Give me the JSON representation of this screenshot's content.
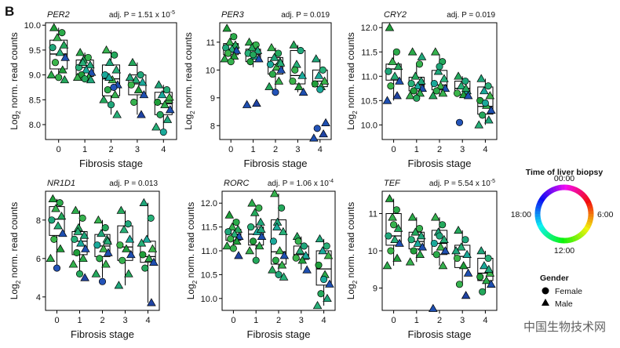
{
  "panel_letter": "B",
  "legend": {
    "time_title": "Time of liver biopsy",
    "time_labels": [
      "00:00",
      "6:00",
      "12:00",
      "18:00"
    ],
    "gender_title": "Gender",
    "gender_items": [
      "Female",
      "Male"
    ]
  },
  "watermark": "中国生物技术网",
  "chart_data": [
    {
      "type": "box",
      "gene": "PER2",
      "p_prefix": "adj. P = 1.51 x 10",
      "p_exp": "-5",
      "ylabel_pre": "Log",
      "ylabel_sub": "2",
      "ylabel_post": " norm. read counts",
      "xlabel": "Fibrosis stage",
      "categories": [
        "0",
        "1",
        "2",
        "3",
        "4"
      ],
      "ylim": [
        7.7,
        10.05
      ],
      "yticks": [
        "8.0",
        "8.5",
        "9.0",
        "9.5",
        "10.0"
      ],
      "boxes": [
        {
          "q1": 9.12,
          "median": 9.42,
          "q3": 9.7,
          "wmin": 8.9,
          "wmax": 9.95
        },
        {
          "q1": 8.97,
          "median": 9.15,
          "q3": 9.3,
          "wmin": 8.9,
          "wmax": 9.45
        },
        {
          "q1": 8.58,
          "median": 8.92,
          "q3": 9.2,
          "wmin": 8.2,
          "wmax": 9.5
        },
        {
          "q1": 8.6,
          "median": 8.82,
          "q3": 9.0,
          "wmin": 8.2,
          "wmax": 9.25
        },
        {
          "q1": 8.2,
          "median": 8.42,
          "q3": 8.65,
          "wmin": 7.85,
          "wmax": 8.8
        }
      ],
      "points": [
        [
          9.95,
          9.85,
          9.75,
          9.6,
          9.55,
          9.45,
          9.35,
          9.25,
          9.1,
          9.0,
          8.95,
          8.9
        ],
        [
          9.45,
          9.35,
          9.3,
          9.2,
          9.15,
          9.1,
          9.05,
          9.0,
          8.95,
          8.95,
          8.92,
          8.9,
          9.25
        ],
        [
          9.5,
          9.4,
          9.25,
          9.1,
          9.0,
          8.9,
          8.8,
          8.7,
          8.6,
          8.5,
          8.4,
          8.2,
          8.95,
          8.75
        ],
        [
          9.25,
          9.0,
          8.9,
          8.85,
          8.8,
          8.7,
          8.6,
          8.45,
          8.2,
          8.95
        ],
        [
          8.8,
          8.7,
          8.6,
          8.5,
          8.45,
          8.4,
          8.3,
          8.2,
          8.1,
          7.95,
          7.85,
          8.55
        ]
      ]
    },
    {
      "type": "box",
      "gene": "PER3",
      "p_prefix": "adj. P = 0.019",
      "p_exp": "",
      "ylabel_pre": "Log",
      "ylabel_sub": "2",
      "ylabel_post": " norm. read counts",
      "xlabel": "Fibrosis stage",
      "categories": [
        "0",
        "1",
        "2",
        "3",
        "4"
      ],
      "ylim": [
        7.5,
        11.7
      ],
      "yticks": [
        "8",
        "9",
        "10",
        "11"
      ],
      "boxes": [
        {
          "q1": 10.55,
          "median": 10.75,
          "q3": 10.95,
          "wmin": 10.3,
          "wmax": 11.3
        },
        {
          "q1": 10.3,
          "median": 10.55,
          "q3": 10.75,
          "wmin": 10.1,
          "wmax": 11.0
        },
        {
          "q1": 9.85,
          "median": 10.2,
          "q3": 10.45,
          "wmin": 9.2,
          "wmax": 10.8
        },
        {
          "q1": 9.5,
          "median": 9.8,
          "q3": 10.7,
          "wmin": 9.2,
          "wmax": 10.9
        },
        {
          "q1": 9.4,
          "median": 9.6,
          "q3": 10.0,
          "wmin": 9.2,
          "wmax": 10.4
        }
      ],
      "points": [
        [
          11.5,
          11.2,
          11.0,
          10.9,
          10.8,
          10.75,
          10.7,
          10.6,
          10.5,
          10.4,
          10.3
        ],
        [
          11.0,
          10.9,
          10.8,
          10.7,
          10.6,
          10.5,
          10.4,
          10.3,
          8.8,
          8.75,
          10.55
        ],
        [
          10.8,
          10.6,
          10.45,
          10.3,
          10.2,
          10.1,
          10.0,
          9.85,
          9.6,
          9.4,
          9.2,
          10.25
        ],
        [
          10.9,
          10.7,
          10.2,
          9.8,
          9.6,
          9.4,
          9.2,
          10.0
        ],
        [
          10.4,
          10.0,
          9.8,
          9.6,
          9.5,
          9.4,
          8.1,
          7.9,
          7.7,
          7.55,
          9.3
        ]
      ]
    },
    {
      "type": "box",
      "gene": "CRY2",
      "p_prefix": "adj. P = 0.019",
      "p_exp": "",
      "ylabel_pre": "Log",
      "ylabel_sub": "2",
      "ylabel_post": " norm. read counts",
      "xlabel": "Fibrosis stage",
      "categories": [
        "0",
        "1",
        "2",
        "3",
        "4"
      ],
      "ylim": [
        9.7,
        12.1
      ],
      "yticks": [
        "10.0",
        "10.5",
        "11.0",
        "11.5",
        "12.0"
      ],
      "boxes": [
        {
          "q1": 10.92,
          "median": 11.15,
          "q3": 11.25,
          "wmin": 10.5,
          "wmax": 11.5
        },
        {
          "q1": 10.7,
          "median": 10.82,
          "q3": 10.98,
          "wmin": 10.55,
          "wmax": 11.25
        },
        {
          "q1": 10.72,
          "median": 10.82,
          "q3": 11.12,
          "wmin": 10.6,
          "wmax": 11.45
        },
        {
          "q1": 10.62,
          "median": 10.75,
          "q3": 10.9,
          "wmin": 10.6,
          "wmax": 11.0
        },
        {
          "q1": 10.22,
          "median": 10.38,
          "q3": 10.78,
          "wmin": 10.0,
          "wmax": 10.95
        }
      ],
      "points": [
        [
          12.0,
          11.5,
          11.3,
          11.2,
          11.1,
          11.0,
          10.9,
          10.8,
          10.6,
          10.5
        ],
        [
          11.5,
          11.25,
          11.0,
          10.9,
          10.85,
          10.8,
          10.75,
          10.7,
          10.65,
          10.6,
          10.55,
          11.4
        ],
        [
          11.5,
          11.3,
          11.1,
          10.95,
          10.85,
          10.8,
          10.75,
          10.7,
          10.65,
          10.6,
          11.2
        ],
        [
          11.0,
          10.9,
          10.8,
          10.7,
          10.65,
          10.62,
          10.6,
          10.05,
          10.75
        ],
        [
          10.95,
          10.8,
          10.7,
          10.6,
          10.5,
          10.4,
          10.3,
          10.2,
          10.1,
          10.0,
          10.45
        ]
      ]
    },
    {
      "type": "box",
      "gene": "NR1D1",
      "p_prefix": "adj. P = 0.013",
      "p_exp": "",
      "ylabel_pre": "Log",
      "ylabel_sub": "2",
      "ylabel_post": " norm. read counts",
      "xlabel": "Fibrosis stage",
      "categories": [
        "0",
        "1",
        "2",
        "3",
        "4"
      ],
      "ylim": [
        3.3,
        9.5
      ],
      "yticks": [
        "4",
        "6",
        "8"
      ],
      "boxes": [
        {
          "q1": 7.2,
          "median": 8.05,
          "q3": 8.7,
          "wmin": 5.5,
          "wmax": 9.1
        },
        {
          "q1": 6.2,
          "median": 6.9,
          "q3": 7.4,
          "wmin": 5.2,
          "wmax": 8.5
        },
        {
          "q1": 6.1,
          "median": 6.65,
          "q3": 7.25,
          "wmin": 5.0,
          "wmax": 8.0
        },
        {
          "q1": 5.9,
          "median": 6.6,
          "q3": 7.7,
          "wmin": 4.6,
          "wmax": 8.5
        },
        {
          "q1": 5.8,
          "median": 6.1,
          "q3": 6.9,
          "wmin": 3.7,
          "wmax": 8.9
        }
      ],
      "points": [
        [
          9.1,
          8.9,
          8.6,
          8.2,
          8.0,
          7.7,
          7.3,
          7.0,
          6.5,
          6.0,
          5.5
        ],
        [
          8.5,
          8.1,
          7.6,
          7.2,
          7.0,
          6.8,
          6.5,
          6.3,
          6.0,
          5.7,
          5.2,
          5.0,
          7.4
        ],
        [
          8.0,
          7.6,
          7.3,
          7.0,
          6.7,
          6.5,
          6.3,
          6.0,
          5.7,
          5.2,
          4.8,
          6.9
        ],
        [
          8.5,
          7.8,
          7.5,
          7.0,
          6.7,
          6.5,
          6.2,
          5.9,
          5.2,
          4.6
        ],
        [
          8.9,
          8.1,
          7.0,
          6.5,
          6.2,
          6.0,
          5.8,
          5.5,
          3.7,
          6.8
        ]
      ]
    },
    {
      "type": "box",
      "gene": "RORC",
      "p_prefix": "adj. P =  1.06 x 10",
      "p_exp": "-4",
      "ylabel_pre": "Log",
      "ylabel_sub": "2",
      "ylabel_post": " norm. read counts",
      "xlabel": "Fibrosis stage",
      "categories": [
        "0",
        "1",
        "2",
        "3",
        "4"
      ],
      "ylim": [
        9.75,
        12.25
      ],
      "yticks": [
        "10.0",
        "10.5",
        "11.0",
        "11.5",
        "12.0"
      ],
      "boxes": [
        {
          "q1": 11.22,
          "median": 11.35,
          "q3": 11.45,
          "wmin": 11.05,
          "wmax": 11.65
        },
        {
          "q1": 11.12,
          "median": 11.35,
          "q3": 11.5,
          "wmin": 10.8,
          "wmax": 11.8
        },
        {
          "q1": 10.72,
          "median": 10.98,
          "q3": 11.65,
          "wmin": 10.45,
          "wmax": 12.2
        },
        {
          "q1": 10.82,
          "median": 10.92,
          "q3": 11.1,
          "wmin": 10.6,
          "wmax": 11.3
        },
        {
          "q1": 10.28,
          "median": 10.62,
          "q3": 11.0,
          "wmin": 9.85,
          "wmax": 11.25
        }
      ],
      "points": [
        [
          11.75,
          11.6,
          11.5,
          11.45,
          11.4,
          11.35,
          11.3,
          11.25,
          11.2,
          11.1,
          11.05,
          10.9
        ],
        [
          12.0,
          11.9,
          11.8,
          11.6,
          11.5,
          11.4,
          11.3,
          11.2,
          11.1,
          11.0,
          10.8,
          11.45
        ],
        [
          12.2,
          11.9,
          11.6,
          11.4,
          11.2,
          11.0,
          10.9,
          10.8,
          10.7,
          10.6,
          10.5,
          10.45,
          11.5
        ],
        [
          11.3,
          11.1,
          11.0,
          10.9,
          10.85,
          10.8,
          10.6,
          11.2
        ],
        [
          11.25,
          11.1,
          11.0,
          10.9,
          10.7,
          10.5,
          10.3,
          10.1,
          10.0,
          9.85,
          10.4
        ]
      ]
    },
    {
      "type": "box",
      "gene": "TEF",
      "p_prefix": "adj. P =  5.54 x 10",
      "p_exp": "-5",
      "ylabel_pre": "Log",
      "ylabel_sub": "2",
      "ylabel_post": " norm. read counts",
      "xlabel": "Fibrosis stage",
      "categories": [
        "0",
        "1",
        "2",
        "3",
        "4"
      ],
      "ylim": [
        8.4,
        11.6
      ],
      "yticks": [
        "9",
        "10",
        "11"
      ],
      "boxes": [
        {
          "q1": 10.15,
          "median": 10.4,
          "q3": 11.0,
          "wmin": 9.6,
          "wmax": 11.4
        },
        {
          "q1": 10.05,
          "median": 10.25,
          "q3": 10.5,
          "wmin": 9.7,
          "wmax": 10.9
        },
        {
          "q1": 9.9,
          "median": 10.2,
          "q3": 10.55,
          "wmin": 9.6,
          "wmax": 10.9
        },
        {
          "q1": 9.55,
          "median": 9.85,
          "q3": 10.15,
          "wmin": 9.1,
          "wmax": 10.55
        },
        {
          "q1": 9.2,
          "median": 9.4,
          "q3": 9.8,
          "wmin": 8.9,
          "wmax": 10.0
        }
      ],
      "points": [
        [
          11.4,
          11.1,
          10.9,
          10.6,
          10.4,
          10.3,
          10.2,
          10.0,
          9.8,
          9.6,
          10.7
        ],
        [
          10.9,
          10.6,
          10.5,
          10.4,
          10.3,
          10.2,
          10.1,
          10.0,
          9.9,
          9.7
        ],
        [
          10.9,
          10.7,
          10.5,
          10.3,
          10.2,
          10.1,
          10.0,
          9.9,
          9.6,
          8.45,
          10.4
        ],
        [
          10.55,
          10.3,
          10.1,
          9.9,
          9.8,
          9.6,
          9.4,
          9.1,
          8.8,
          10.0
        ],
        [
          10.0,
          9.8,
          9.6,
          9.4,
          9.3,
          9.2,
          9.1,
          8.9,
          9.5
        ]
      ]
    }
  ]
}
